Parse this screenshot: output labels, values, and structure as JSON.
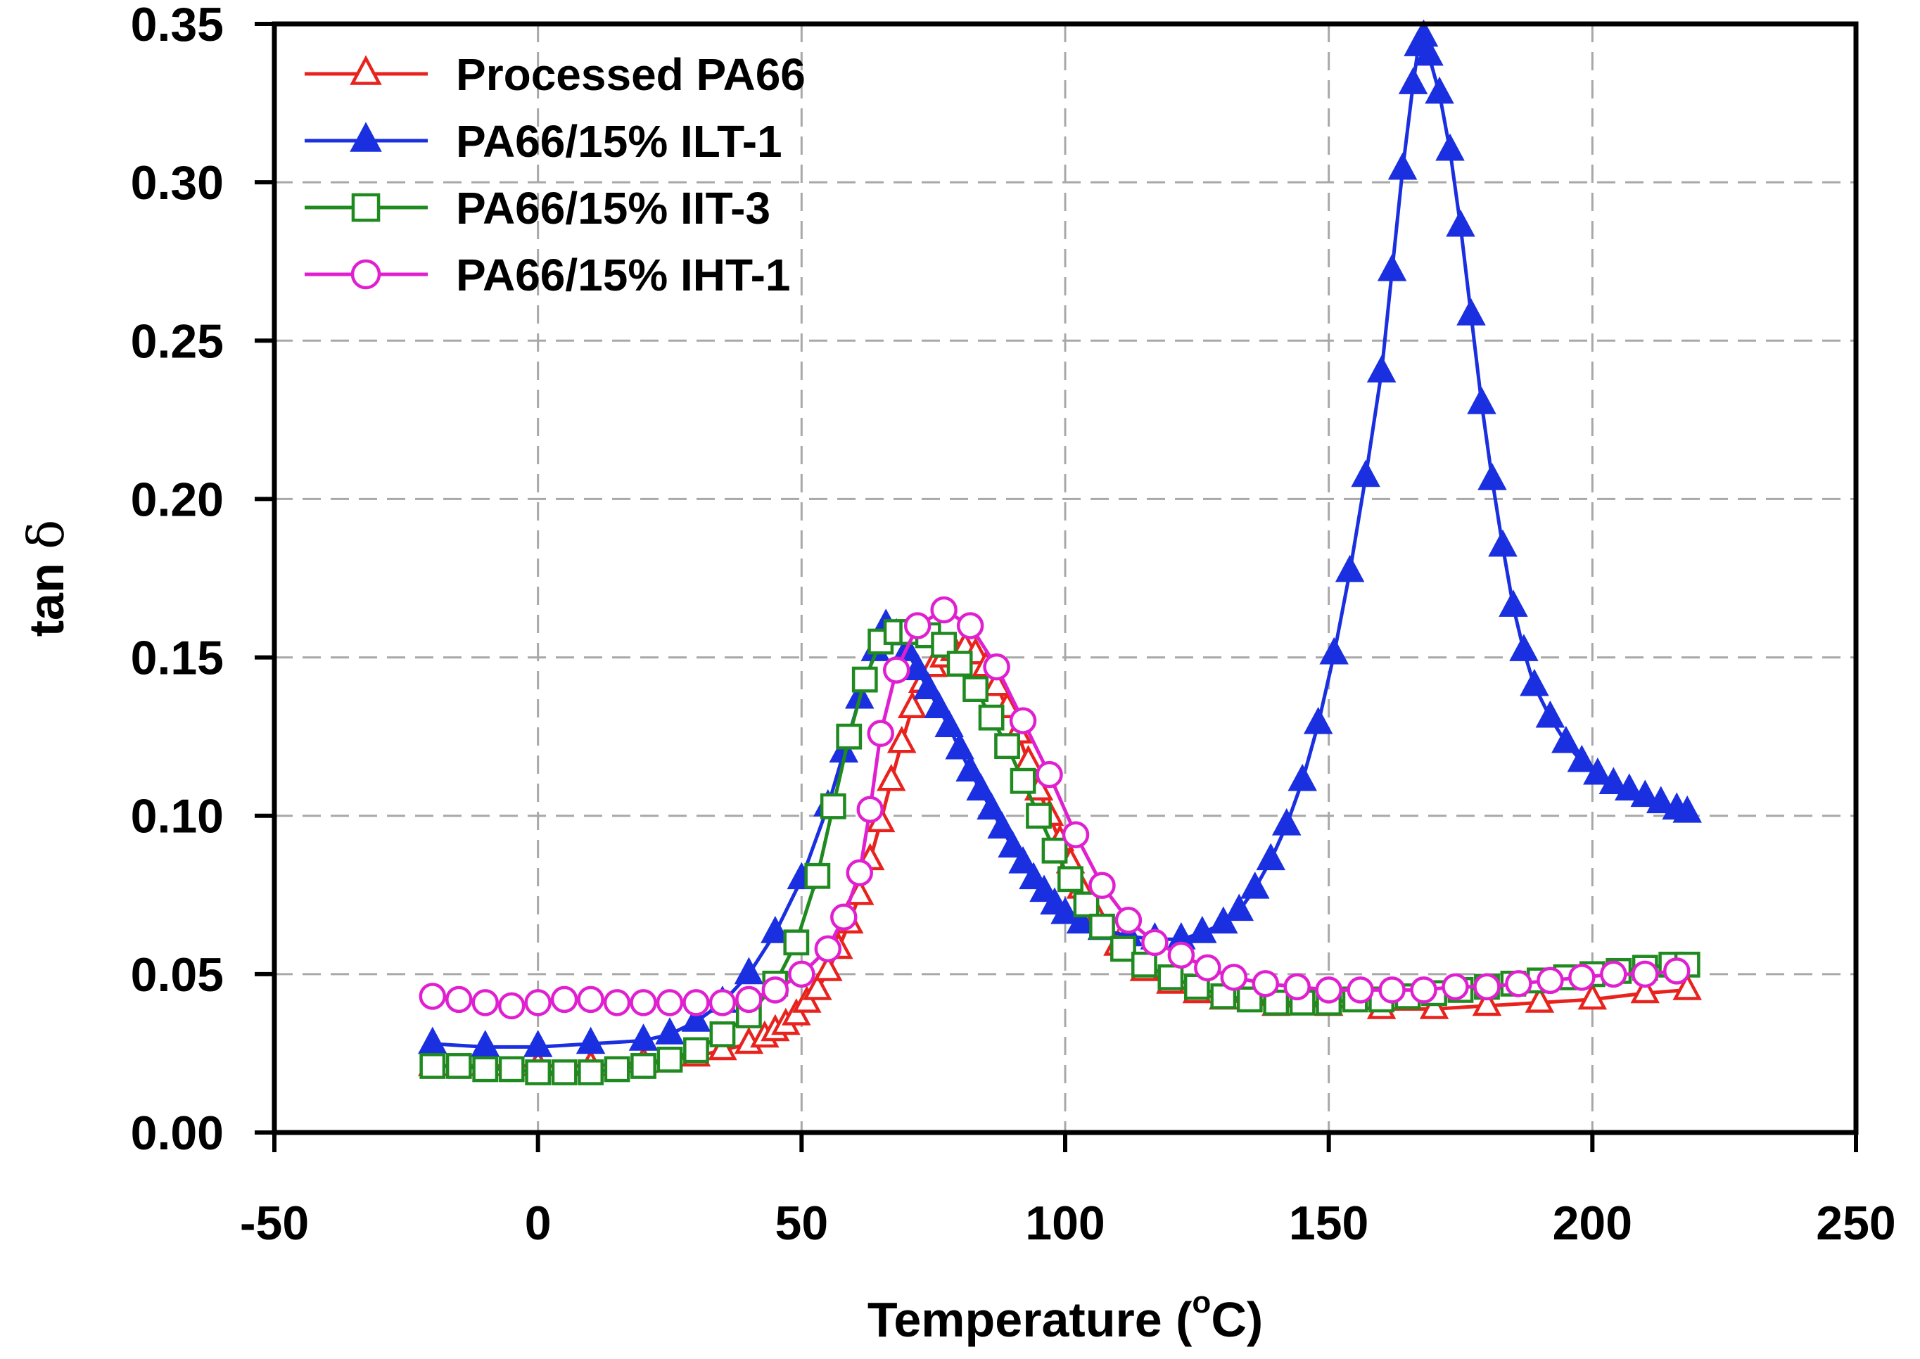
{
  "chart_data": {
    "type": "line",
    "title": "",
    "xlabel_prefix": "Temperature (",
    "xlabel_sup": "o",
    "xlabel_suffix": "C)",
    "ylabel_main": "tan ",
    "ylabel_symbol": "δ",
    "xlim": [
      -50,
      250
    ],
    "ylim": [
      0,
      0.35
    ],
    "xticks": [
      -50,
      0,
      50,
      100,
      150,
      200,
      250
    ],
    "xtick_labels": [
      "-50",
      "0",
      "50",
      "100",
      "150",
      "200",
      "250"
    ],
    "yticks": [
      0,
      0.05,
      0.1,
      0.15,
      0.2,
      0.25,
      0.3,
      0.35
    ],
    "ytick_labels": [
      "0.00",
      "0.05",
      "0.10",
      "0.15",
      "0.20",
      "0.25",
      "0.30",
      "0.35"
    ],
    "grid": true,
    "legend_position": "top-left",
    "series": [
      {
        "name": "Processed PA66",
        "color": "#e8231e",
        "marker": "triangle-open",
        "points": [
          [
            -20,
            0.021
          ],
          [
            -10,
            0.021
          ],
          [
            0,
            0.021
          ],
          [
            10,
            0.021
          ],
          [
            20,
            0.022
          ],
          [
            30,
            0.024
          ],
          [
            35,
            0.026
          ],
          [
            40,
            0.028
          ],
          [
            43,
            0.03
          ],
          [
            45,
            0.032
          ],
          [
            47,
            0.034
          ],
          [
            49,
            0.037
          ],
          [
            51,
            0.041
          ],
          [
            53,
            0.045
          ],
          [
            55,
            0.051
          ],
          [
            57,
            0.058
          ],
          [
            59,
            0.066
          ],
          [
            61,
            0.075
          ],
          [
            63,
            0.086
          ],
          [
            65,
            0.098
          ],
          [
            67,
            0.111
          ],
          [
            69,
            0.123
          ],
          [
            71,
            0.134
          ],
          [
            73,
            0.142
          ],
          [
            75,
            0.147
          ],
          [
            77,
            0.15
          ],
          [
            79,
            0.152
          ],
          [
            81,
            0.153
          ],
          [
            83,
            0.151
          ],
          [
            85,
            0.147
          ],
          [
            87,
            0.141
          ],
          [
            89,
            0.134
          ],
          [
            91,
            0.126
          ],
          [
            93,
            0.117
          ],
          [
            95,
            0.108
          ],
          [
            97,
            0.1
          ],
          [
            99,
            0.092
          ],
          [
            101,
            0.085
          ],
          [
            103,
            0.077
          ],
          [
            106,
            0.068
          ],
          [
            110,
            0.059
          ],
          [
            115,
            0.051
          ],
          [
            120,
            0.047
          ],
          [
            125,
            0.044
          ],
          [
            130,
            0.042
          ],
          [
            140,
            0.04
          ],
          [
            150,
            0.04
          ],
          [
            160,
            0.039
          ],
          [
            170,
            0.039
          ],
          [
            180,
            0.04
          ],
          [
            190,
            0.041
          ],
          [
            200,
            0.042
          ],
          [
            210,
            0.044
          ],
          [
            218,
            0.045
          ]
        ]
      },
      {
        "name": "PA66/15% ILT-1",
        "color": "#1a2fe0",
        "marker": "triangle-filled",
        "points": [
          [
            -20,
            0.028
          ],
          [
            -10,
            0.027
          ],
          [
            0,
            0.027
          ],
          [
            10,
            0.028
          ],
          [
            20,
            0.029
          ],
          [
            25,
            0.031
          ],
          [
            30,
            0.035
          ],
          [
            35,
            0.041
          ],
          [
            40,
            0.05
          ],
          [
            45,
            0.063
          ],
          [
            50,
            0.08
          ],
          [
            55,
            0.103
          ],
          [
            58,
            0.12
          ],
          [
            61,
            0.137
          ],
          [
            64,
            0.152
          ],
          [
            66,
            0.16
          ],
          [
            68,
            0.157
          ],
          [
            70,
            0.152
          ],
          [
            72,
            0.146
          ],
          [
            74,
            0.14
          ],
          [
            76,
            0.134
          ],
          [
            78,
            0.128
          ],
          [
            80,
            0.121
          ],
          [
            82,
            0.114
          ],
          [
            84,
            0.108
          ],
          [
            86,
            0.102
          ],
          [
            88,
            0.096
          ],
          [
            90,
            0.09
          ],
          [
            92,
            0.085
          ],
          [
            94,
            0.08
          ],
          [
            96,
            0.076
          ],
          [
            98,
            0.072
          ],
          [
            100,
            0.069
          ],
          [
            103,
            0.066
          ],
          [
            107,
            0.064
          ],
          [
            112,
            0.062
          ],
          [
            117,
            0.061
          ],
          [
            122,
            0.061
          ],
          [
            126,
            0.063
          ],
          [
            130,
            0.066
          ],
          [
            133,
            0.07
          ],
          [
            136,
            0.077
          ],
          [
            139,
            0.086
          ],
          [
            142,
            0.097
          ],
          [
            145,
            0.111
          ],
          [
            148,
            0.129
          ],
          [
            151,
            0.151
          ],
          [
            154,
            0.177
          ],
          [
            157,
            0.207
          ],
          [
            160,
            0.24
          ],
          [
            162,
            0.272
          ],
          [
            164,
            0.304
          ],
          [
            166,
            0.331
          ],
          [
            167,
            0.343
          ],
          [
            168,
            0.346
          ],
          [
            169,
            0.34
          ],
          [
            171,
            0.328
          ],
          [
            173,
            0.31
          ],
          [
            175,
            0.286
          ],
          [
            177,
            0.258
          ],
          [
            179,
            0.23
          ],
          [
            181,
            0.206
          ],
          [
            183,
            0.185
          ],
          [
            185,
            0.166
          ],
          [
            187,
            0.152
          ],
          [
            189,
            0.141
          ],
          [
            192,
            0.131
          ],
          [
            195,
            0.123
          ],
          [
            198,
            0.117
          ],
          [
            201,
            0.113
          ],
          [
            204,
            0.11
          ],
          [
            207,
            0.108
          ],
          [
            210,
            0.106
          ],
          [
            213,
            0.104
          ],
          [
            216,
            0.102
          ],
          [
            218,
            0.101
          ]
        ]
      },
      {
        "name": "PA66/15% IIT-3",
        "color": "#1f8a1f",
        "marker": "square-open",
        "points": [
          [
            -20,
            0.021
          ],
          [
            -15,
            0.021
          ],
          [
            -10,
            0.02
          ],
          [
            -5,
            0.02
          ],
          [
            0,
            0.019
          ],
          [
            5,
            0.019
          ],
          [
            10,
            0.019
          ],
          [
            15,
            0.02
          ],
          [
            20,
            0.021
          ],
          [
            25,
            0.023
          ],
          [
            30,
            0.026
          ],
          [
            35,
            0.031
          ],
          [
            40,
            0.037
          ],
          [
            45,
            0.047
          ],
          [
            49,
            0.06
          ],
          [
            53,
            0.081
          ],
          [
            56,
            0.103
          ],
          [
            59,
            0.125
          ],
          [
            62,
            0.143
          ],
          [
            65,
            0.155
          ],
          [
            68,
            0.158
          ],
          [
            71,
            0.158
          ],
          [
            74,
            0.157
          ],
          [
            77,
            0.154
          ],
          [
            80,
            0.148
          ],
          [
            83,
            0.14
          ],
          [
            86,
            0.131
          ],
          [
            89,
            0.122
          ],
          [
            92,
            0.111
          ],
          [
            95,
            0.1
          ],
          [
            98,
            0.089
          ],
          [
            101,
            0.08
          ],
          [
            104,
            0.072
          ],
          [
            107,
            0.065
          ],
          [
            111,
            0.058
          ],
          [
            115,
            0.053
          ],
          [
            120,
            0.049
          ],
          [
            125,
            0.046
          ],
          [
            130,
            0.043
          ],
          [
            135,
            0.042
          ],
          [
            140,
            0.041
          ],
          [
            145,
            0.041
          ],
          [
            150,
            0.041
          ],
          [
            155,
            0.042
          ],
          [
            160,
            0.042
          ],
          [
            165,
            0.043
          ],
          [
            170,
            0.044
          ],
          [
            175,
            0.045
          ],
          [
            180,
            0.046
          ],
          [
            185,
            0.047
          ],
          [
            190,
            0.048
          ],
          [
            195,
            0.049
          ],
          [
            200,
            0.05
          ],
          [
            205,
            0.051
          ],
          [
            210,
            0.052
          ],
          [
            215,
            0.053
          ],
          [
            218,
            0.053
          ]
        ]
      },
      {
        "name": "PA66/15% IHT-1",
        "color": "#e020d0",
        "marker": "circle-open",
        "points": [
          [
            -20,
            0.043
          ],
          [
            -15,
            0.042
          ],
          [
            -10,
            0.041
          ],
          [
            -5,
            0.04
          ],
          [
            0,
            0.041
          ],
          [
            5,
            0.042
          ],
          [
            10,
            0.042
          ],
          [
            15,
            0.041
          ],
          [
            20,
            0.041
          ],
          [
            25,
            0.041
          ],
          [
            30,
            0.041
          ],
          [
            35,
            0.041
          ],
          [
            40,
            0.042
          ],
          [
            45,
            0.045
          ],
          [
            50,
            0.05
          ],
          [
            55,
            0.058
          ],
          [
            58,
            0.068
          ],
          [
            61,
            0.082
          ],
          [
            63,
            0.102
          ],
          [
            65,
            0.126
          ],
          [
            68,
            0.146
          ],
          [
            72,
            0.16
          ],
          [
            77,
            0.165
          ],
          [
            82,
            0.16
          ],
          [
            87,
            0.147
          ],
          [
            92,
            0.13
          ],
          [
            97,
            0.113
          ],
          [
            102,
            0.094
          ],
          [
            107,
            0.078
          ],
          [
            112,
            0.067
          ],
          [
            117,
            0.06
          ],
          [
            122,
            0.056
          ],
          [
            127,
            0.052
          ],
          [
            132,
            0.049
          ],
          [
            138,
            0.047
          ],
          [
            144,
            0.046
          ],
          [
            150,
            0.045
          ],
          [
            156,
            0.045
          ],
          [
            162,
            0.045
          ],
          [
            168,
            0.045
          ],
          [
            174,
            0.046
          ],
          [
            180,
            0.046
          ],
          [
            186,
            0.047
          ],
          [
            192,
            0.048
          ],
          [
            198,
            0.049
          ],
          [
            204,
            0.05
          ],
          [
            210,
            0.05
          ],
          [
            216,
            0.051
          ]
        ]
      }
    ]
  }
}
